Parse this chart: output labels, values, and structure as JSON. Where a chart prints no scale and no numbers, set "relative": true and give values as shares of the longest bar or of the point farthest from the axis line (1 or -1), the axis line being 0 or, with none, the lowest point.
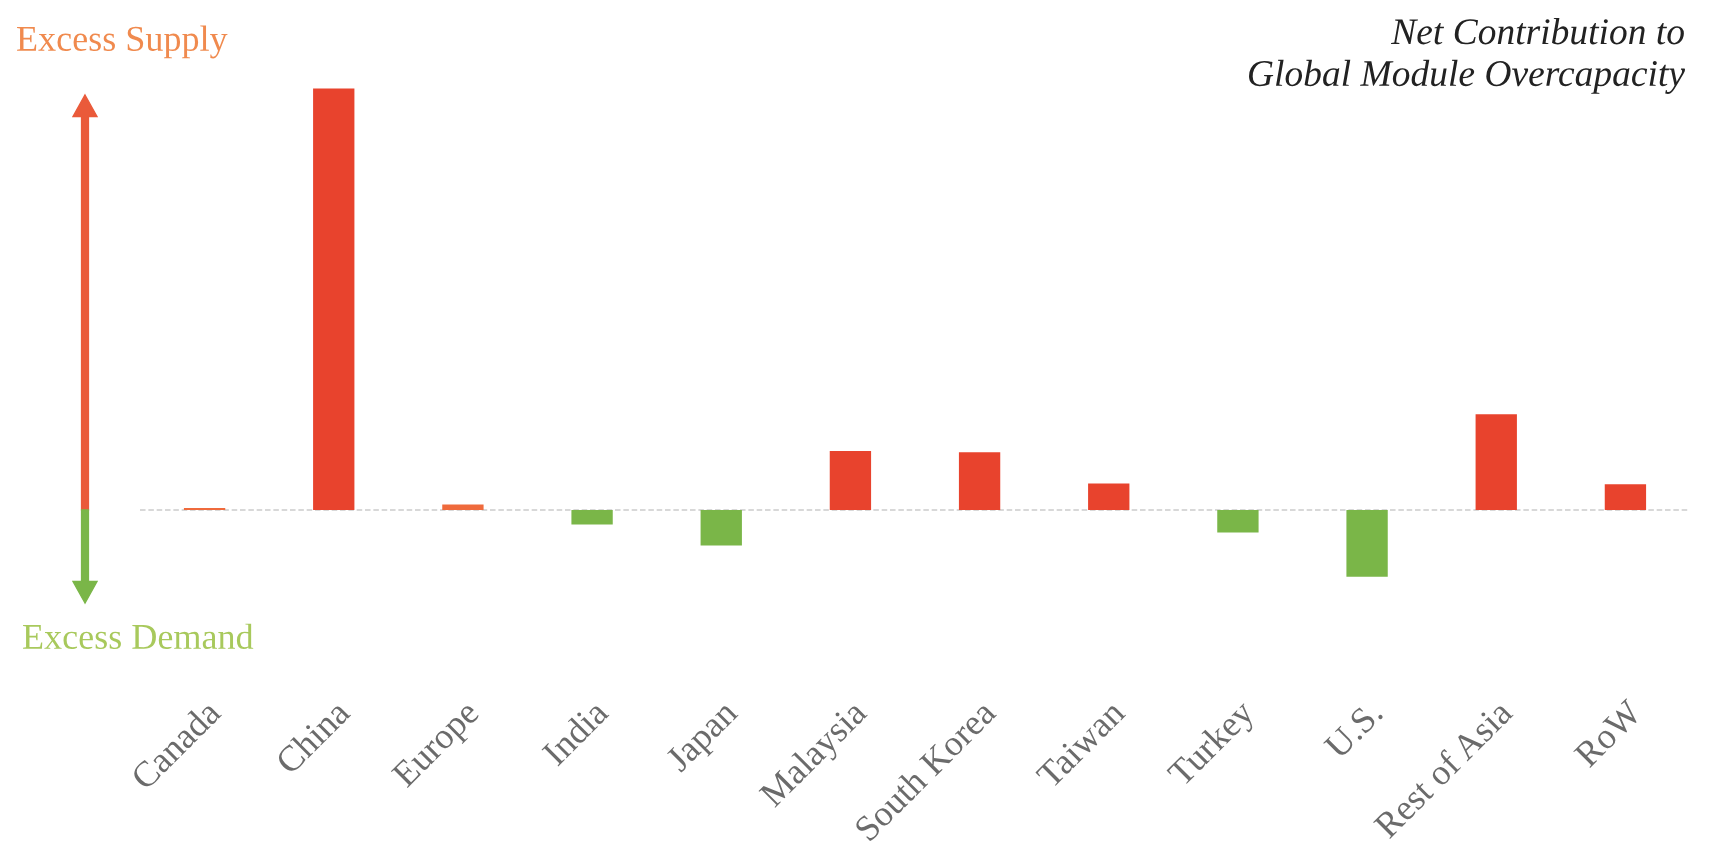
{
  "chart_data": {
    "type": "bar",
    "title": "Net Contribution to\nGlobal Module Overcapacity",
    "relative": true,
    "categories": [
      "Canada",
      "China",
      "Europe",
      "India",
      "Japan",
      "Malaysia",
      "South Korea",
      "Taiwan",
      "Turkey",
      "U.S.",
      "Rest of Asia",
      "RoW"
    ],
    "values": [
      0.005,
      1,
      0.013,
      -0.034,
      -0.084,
      0.14,
      0.137,
      0.063,
      -0.053,
      -0.158,
      0.227,
      0.061
    ],
    "colors": [
      "#ef6a3c",
      "#e8432d",
      "#ef6a3c",
      "#7ab648",
      "#7ab648",
      "#e8432d",
      "#e8432d",
      "#e8432d",
      "#7ab648",
      "#7ab648",
      "#e8432d",
      "#e8432d"
    ],
    "annotations": [
      "Excess Supply",
      "Excess Demand"
    ],
    "ref_lines": [
      {
        "axis": "y",
        "value": 0,
        "color": "#cccccc",
        "line_style": "dashed"
      }
    ],
    "grid": false,
    "legend": false
  }
}
